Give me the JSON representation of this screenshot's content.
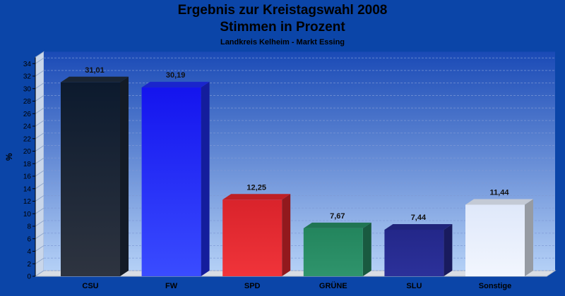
{
  "chart_data": {
    "type": "bar",
    "title": "Ergebnis zur Kreistagswahl 2008",
    "subtitle": "Stimmen in Prozent",
    "caption": "Landkreis Kelheim - Markt Essing",
    "ylabel": "%",
    "xlabel": "",
    "ylim": [
      0,
      35
    ],
    "yticks": [
      0,
      2,
      4,
      6,
      8,
      10,
      12,
      14,
      16,
      18,
      20,
      22,
      24,
      26,
      28,
      30,
      32,
      34
    ],
    "grid": true,
    "categories": [
      "CSU",
      "FW",
      "SPD",
      "GRÜNE",
      "SLU",
      "Sonstige"
    ],
    "values": [
      31.01,
      30.19,
      12.25,
      7.67,
      7.44,
      11.44
    ],
    "value_labels": [
      "31,01",
      "30,19",
      "12,25",
      "7,67",
      "7,44",
      "11,44"
    ],
    "colors": [
      "#1d2a3c",
      "#1f2cf0",
      "#e0262c",
      "#268a62",
      "#262a90",
      "#e6eefb"
    ]
  }
}
